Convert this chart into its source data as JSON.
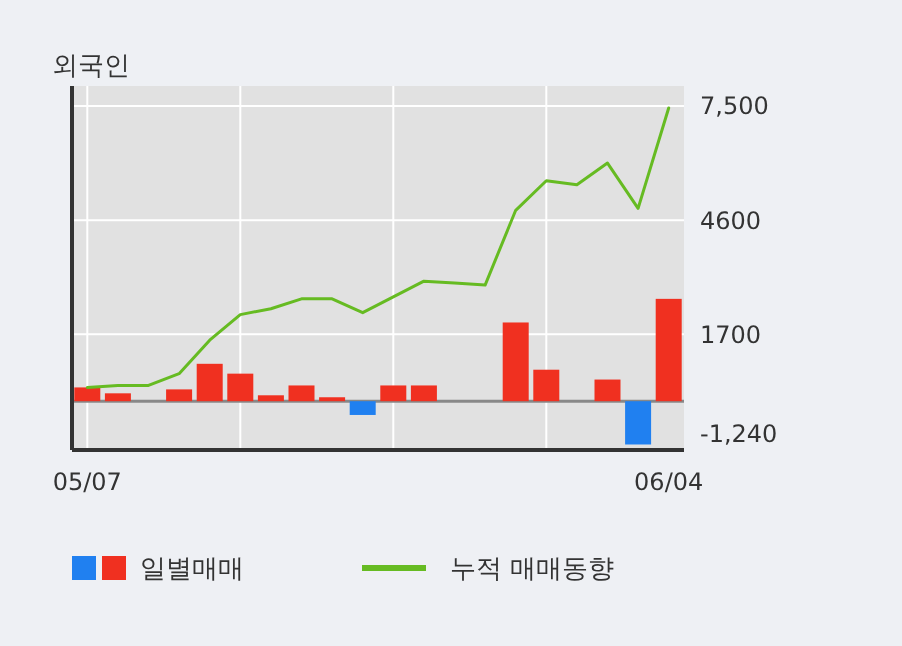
{
  "chart_data": {
    "type": "bar",
    "title": "외국인",
    "categories": [
      "05/07",
      null,
      null,
      null,
      null,
      null,
      null,
      null,
      null,
      null,
      null,
      null,
      null,
      null,
      null,
      null,
      null,
      null,
      null,
      "06/04"
    ],
    "series": [
      {
        "name": "일별매매",
        "colors": [
          "#f03020",
          "#f03020",
          "#f03020",
          "#f03020",
          "#f03020",
          "#f03020",
          "#f03020",
          "#f03020",
          "#f03020",
          "#2080f0",
          "#f03020",
          "#f03020",
          "#f03020",
          "#f03020",
          "#f03020",
          "#f03020",
          "#f03020",
          "#f03020",
          "#2080f0",
          "#f03020"
        ],
        "values": [
          350,
          200,
          0,
          300,
          950,
          700,
          150,
          400,
          100,
          -350,
          400,
          400,
          0,
          0,
          2000,
          800,
          0,
          550,
          -1100,
          2600
        ]
      },
      {
        "type": "line",
        "name": "누적 매매동향",
        "color": "#66bb22",
        "values": [
          350,
          400,
          400,
          700,
          1550,
          2200,
          2350,
          2600,
          2600,
          2250,
          2650,
          3050,
          3000,
          2950,
          4850,
          5600,
          5500,
          6050,
          4900,
          7450
        ]
      }
    ],
    "ylim": [
      -1240,
      7500
    ],
    "yticks": [
      {
        "value": 7500,
        "label": "7,500"
      },
      4600,
      1700,
      {
        "value": -1240,
        "label": "-1,240"
      }
    ],
    "grid": true,
    "legend": "bottom"
  }
}
